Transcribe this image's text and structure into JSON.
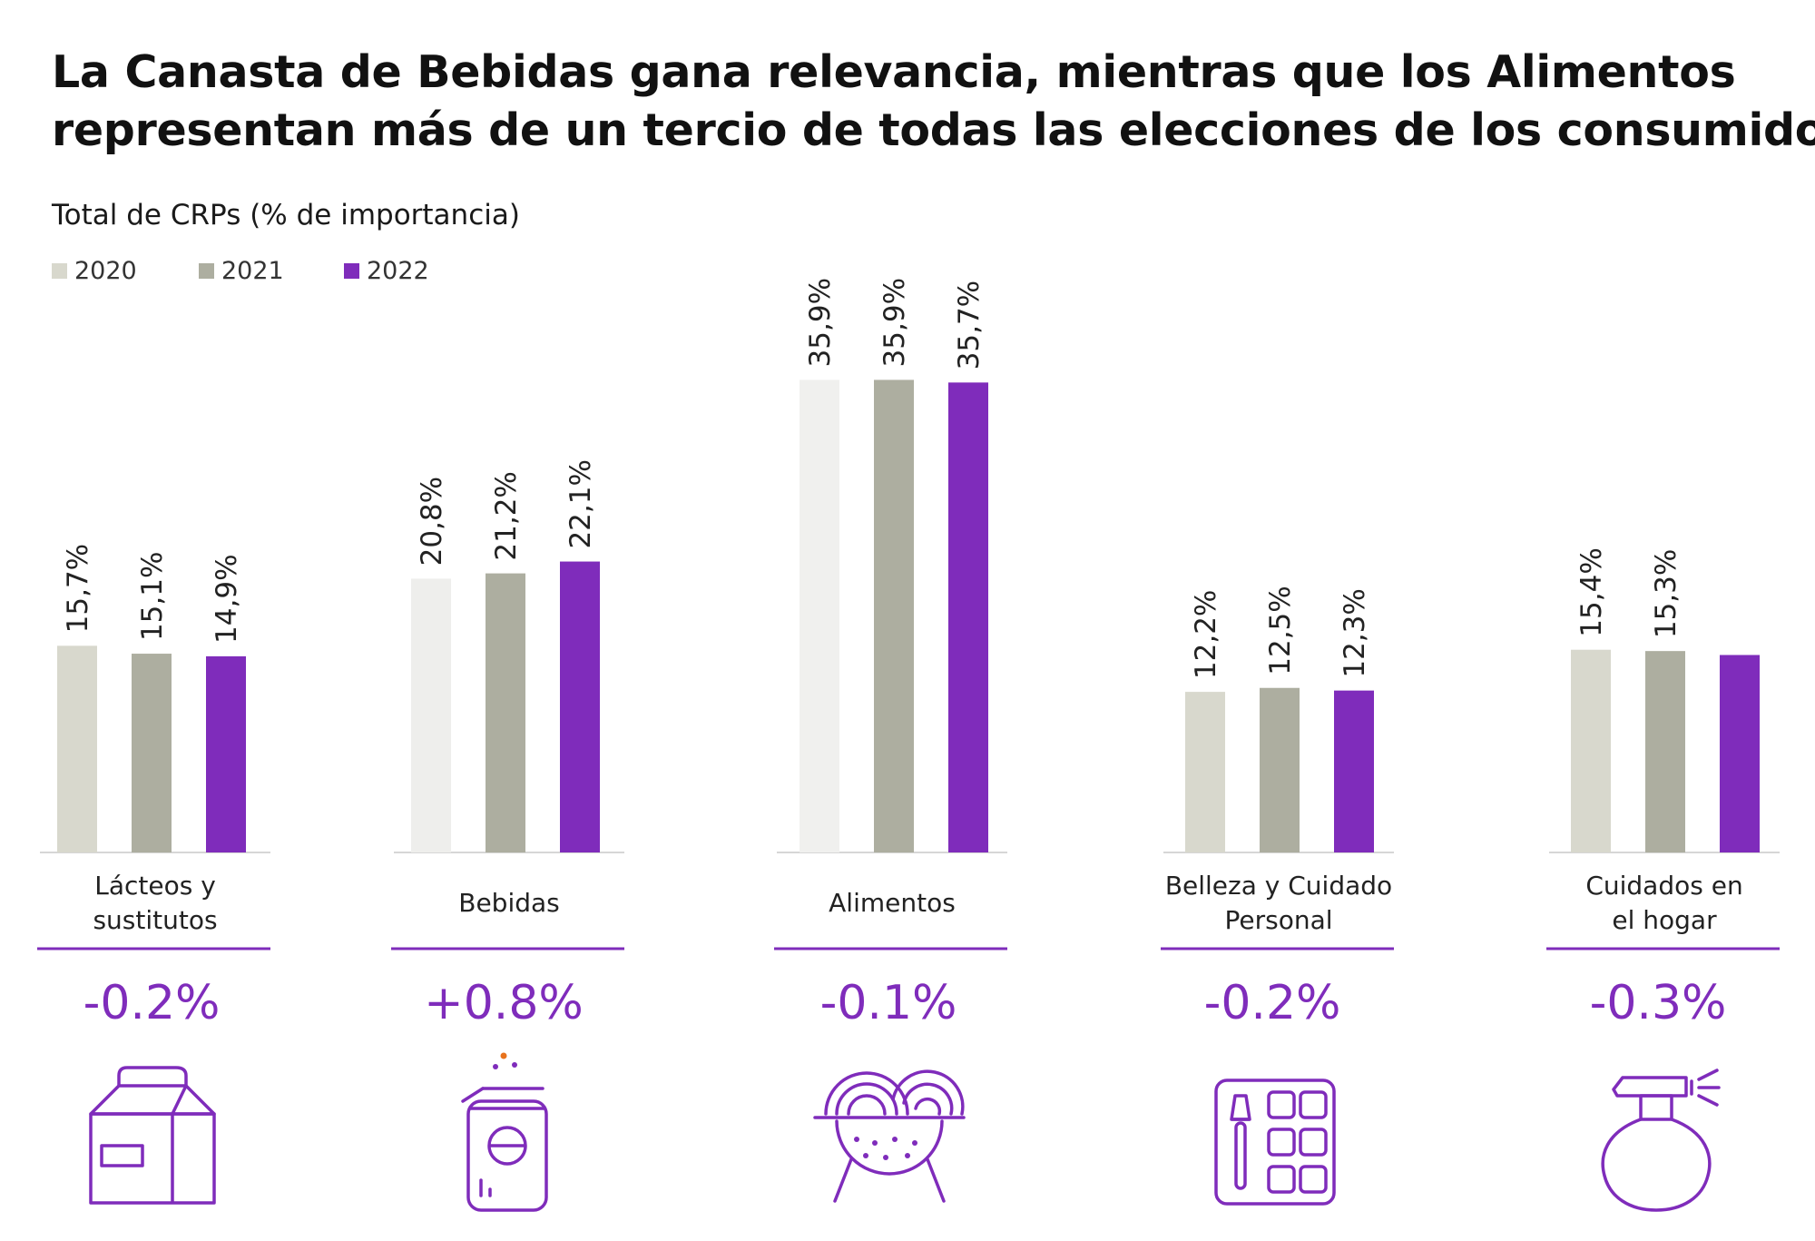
{
  "title_line1": "La Canasta de Bebidas gana relevancia, mientras que los Alimentos",
  "title_line2": "representan más de un tercio de todas las elecciones de los consumidores",
  "subtitle": "Total de CRPs (% de importancia)",
  "colors": {
    "accent": "#7f2cbb",
    "2020": "#d8d8cd",
    "2021": "#adaea0",
    "2022": "#7f2cbb",
    "bebidas_2020": "#eeeeec",
    "alimentos_2020": "#f0f0ee"
  },
  "changes": [
    "-0.2%",
    "+0.8%",
    "-0.1%",
    "-0.2%",
    "-0.3%"
  ],
  "icons": [
    "milk-carton-icon",
    "soda-can-icon",
    "food-bowl-icon",
    "makeup-palette-icon",
    "spray-bottle-icon"
  ],
  "chart_data": {
    "type": "bar",
    "title": "",
    "xlabel": "",
    "ylabel": "",
    "ylim": [
      0,
      40
    ],
    "grid": false,
    "legend_position": "top-left",
    "categories": [
      [
        "Lácteos y",
        "sustitutos"
      ],
      [
        "Bebidas"
      ],
      [
        "Alimentos"
      ],
      [
        "Belleza y Cuidado",
        "Personal"
      ],
      [
        "Cuidados en",
        "el hogar"
      ]
    ],
    "series": [
      {
        "name": "2020",
        "values": [
          15.7,
          20.8,
          35.9,
          12.2,
          15.4
        ],
        "labels": [
          "15,7%",
          "20,8%",
          "35,9%",
          "12,2%",
          "15,4%"
        ]
      },
      {
        "name": "2021",
        "values": [
          15.1,
          21.2,
          35.9,
          12.5,
          15.3
        ],
        "labels": [
          "15,1%",
          "21,2%",
          "35,9%",
          "12,5%",
          "15,3%"
        ]
      },
      {
        "name": "2022",
        "values": [
          14.9,
          22.1,
          35.7,
          12.3,
          15.0
        ],
        "labels": [
          "14,9%",
          "22,1%",
          "35,7%",
          "12,3%",
          ""
        ]
      }
    ]
  }
}
